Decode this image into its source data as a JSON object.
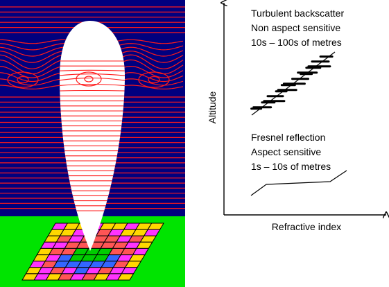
{
  "colors": {
    "sky": "#00007f",
    "contour": "#ff1a1a",
    "ground": "#00e400",
    "beam": "#ffffff",
    "grid_colors": [
      "#ffd700",
      "#ff33ff",
      "#3366ff",
      "#ff5555",
      "#00cc00"
    ]
  },
  "turbulent": {
    "line1": "Turbulent backscatter",
    "line2": "Non aspect sensitive",
    "line3": "10s – 100s of metres"
  },
  "fresnel": {
    "line1": "Fresnel reflection",
    "line2": "Aspect sensitive",
    "line3": "1s – 10s of metres"
  },
  "axes": {
    "ylabel": "Altitude",
    "xlabel": "Refractive index"
  }
}
